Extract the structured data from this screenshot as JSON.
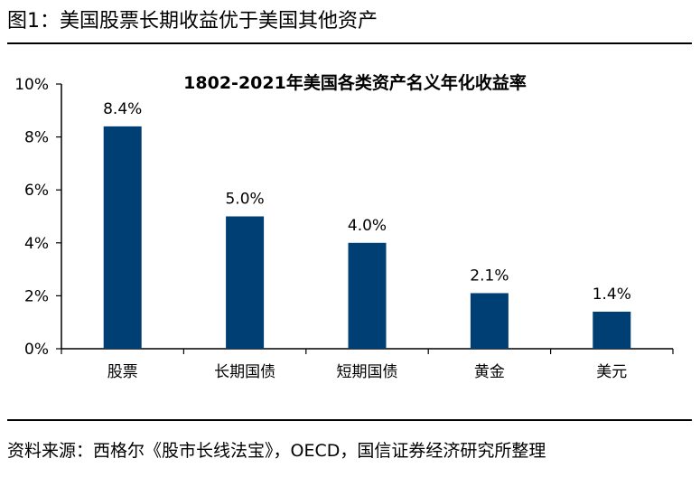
{
  "figure": {
    "title": "图1：美国股票长期收益优于美国其他资产",
    "source": "资料来源：西格尔《股市长线法宝》，OECD，国信证券经济研究所整理"
  },
  "chart_data": {
    "type": "bar",
    "title": "1802-2021年美国各类资产名义年化收益率",
    "categories": [
      "股票",
      "长期国债",
      "短期国债",
      "黄金",
      "美元"
    ],
    "values": [
      8.4,
      5.0,
      4.0,
      2.1,
      1.4
    ],
    "data_labels": [
      "8.4%",
      "5.0%",
      "4.0%",
      "2.1%",
      "1.4%"
    ],
    "y_ticks": [
      0,
      2,
      4,
      6,
      8,
      10
    ],
    "y_tick_labels": [
      "0%",
      "2%",
      "4%",
      "6%",
      "8%",
      "10%"
    ],
    "ylim": [
      0,
      10
    ],
    "grid": false,
    "bar_color": "#003f73"
  }
}
